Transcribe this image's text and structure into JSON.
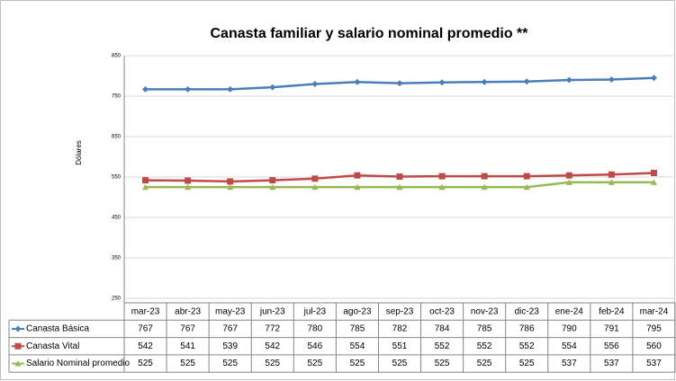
{
  "chart_data": {
    "type": "line",
    "title": "Canasta familiar y salario nominal promedio **",
    "y_label": "Dólares",
    "categories": [
      "mar-23",
      "abr-23",
      "may-23",
      "jun-23",
      "jul-23",
      "ago-23",
      "sep-23",
      "oct-23",
      "nov-23",
      "dic-23",
      "ene-24",
      "feb-24",
      "mar-24"
    ],
    "series": [
      {
        "name": "Canasta Básica",
        "color": "#4a7ebb",
        "marker": "diamond",
        "values": [
          767,
          767,
          767,
          772,
          780,
          785,
          782,
          784,
          785,
          786,
          790,
          791,
          795
        ]
      },
      {
        "name": "Canasta Vital",
        "color": "#be4b48",
        "marker": "square",
        "values": [
          542,
          541,
          539,
          542,
          546,
          554,
          551,
          552,
          552,
          552,
          554,
          556,
          560
        ]
      },
      {
        "name": "Salario Nominal promedio",
        "color": "#98b954",
        "marker": "triangle",
        "values": [
          525,
          525,
          525,
          525,
          525,
          525,
          525,
          525,
          525,
          525,
          537,
          537,
          537
        ]
      }
    ],
    "ylim": [
      250,
      850
    ],
    "yticks": [
      250,
      350,
      450,
      550,
      650,
      750,
      850
    ],
    "grid": true,
    "data_table": true
  }
}
